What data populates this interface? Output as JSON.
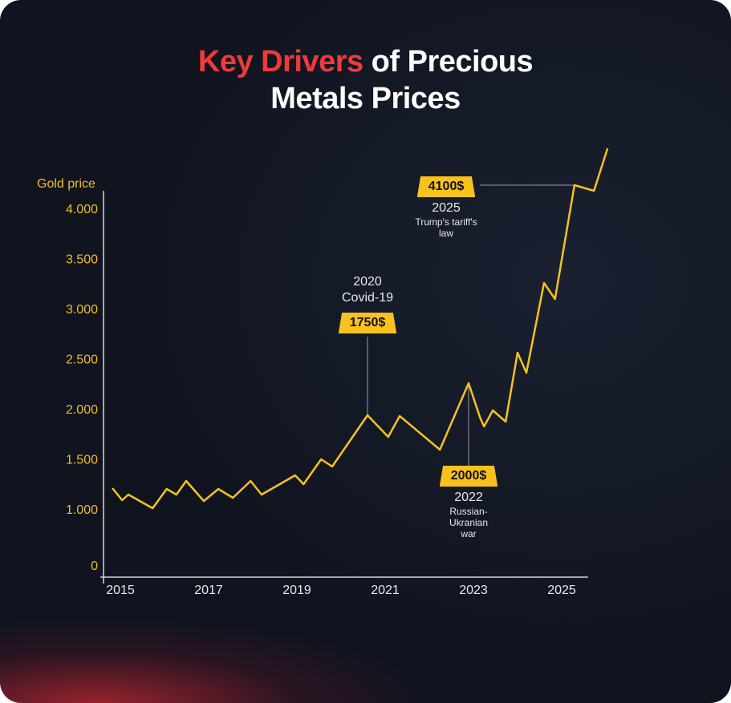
{
  "title": {
    "highlight": "Key Drivers",
    "rest_line1": " of Precious",
    "line2": "Metals Prices"
  },
  "chart_data": {
    "type": "line",
    "title": "Key Drivers of Precious Metals Prices",
    "ylabel": "Gold price",
    "xlabel": "",
    "y_ticks": [
      "4.000",
      "3.500",
      "3.000",
      "2.500",
      "2.000",
      "1.500",
      "1.000",
      "0"
    ],
    "y_tick_values": [
      4000,
      3500,
      3000,
      2500,
      2000,
      1500,
      1000,
      0
    ],
    "x_ticks": [
      "2015",
      "2017",
      "2019",
      "2021",
      "2023",
      "2025"
    ],
    "x_tick_values": [
      2015,
      2017,
      2019,
      2021,
      2023,
      2025
    ],
    "grid": false,
    "color": "#f7c21e",
    "series": [
      {
        "name": "Gold price",
        "points": [
          [
            2014.82,
            1208
          ],
          [
            2015.04,
            1088
          ],
          [
            2015.18,
            1144
          ],
          [
            2015.73,
            1008
          ],
          [
            2016.05,
            1200
          ],
          [
            2016.27,
            1144
          ],
          [
            2016.49,
            1280
          ],
          [
            2016.89,
            1080
          ],
          [
            2017.22,
            1200
          ],
          [
            2017.55,
            1112
          ],
          [
            2017.95,
            1280
          ],
          [
            2018.2,
            1144
          ],
          [
            2018.96,
            1336
          ],
          [
            2019.15,
            1248
          ],
          [
            2019.55,
            1496
          ],
          [
            2019.8,
            1424
          ],
          [
            2020.6,
            1936
          ],
          [
            2021.07,
            1720
          ],
          [
            2021.33,
            1928
          ],
          [
            2022.24,
            1592
          ],
          [
            2022.89,
            2256
          ],
          [
            2023.15,
            1912
          ],
          [
            2023.24,
            1824
          ],
          [
            2023.44,
            1984
          ],
          [
            2023.73,
            1872
          ],
          [
            2024.0,
            2560
          ],
          [
            2024.2,
            2360
          ],
          [
            2024.6,
            3256
          ],
          [
            2024.85,
            3096
          ],
          [
            2025.29,
            4232
          ],
          [
            2025.73,
            4176
          ],
          [
            2026.04,
            4600
          ]
        ]
      }
    ],
    "annotations": [
      {
        "price": "1750$",
        "year": "2020",
        "event": "Covid-19"
      },
      {
        "price": "2000$",
        "year": "2022",
        "event": "Russian-Ukranian war"
      },
      {
        "price": "4100$",
        "year": "2025",
        "event": "Trump's tariff's law"
      }
    ]
  }
}
